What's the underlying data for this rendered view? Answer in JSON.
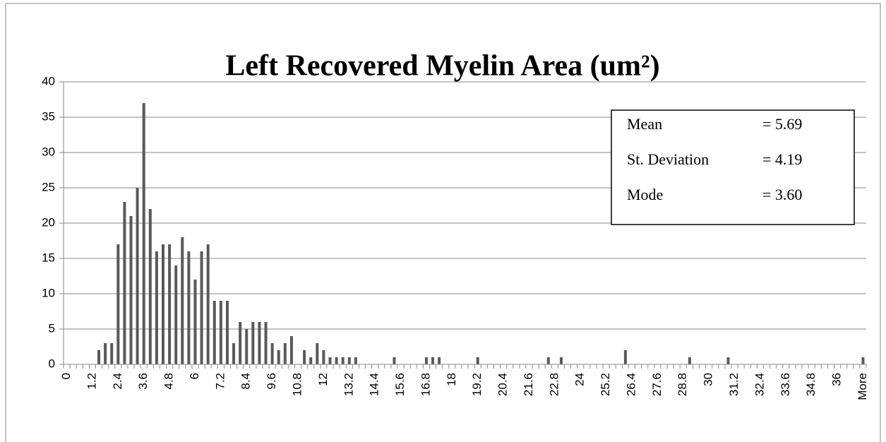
{
  "chart_data": {
    "type": "bar",
    "title": "Left Recovered Myelin Area (um²)",
    "categories": [
      "0",
      null,
      null,
      null,
      "1.2",
      null,
      null,
      null,
      "2.4",
      null,
      null,
      null,
      "3.6",
      null,
      null,
      null,
      "4.8",
      null,
      null,
      null,
      "6",
      null,
      null,
      null,
      "7.2",
      null,
      null,
      null,
      "8.4",
      null,
      null,
      null,
      "9.6",
      null,
      null,
      null,
      "10.8",
      null,
      null,
      null,
      "12",
      null,
      null,
      null,
      "13.2",
      null,
      null,
      null,
      "14.4",
      null,
      null,
      null,
      "15.6",
      null,
      null,
      null,
      "16.8",
      null,
      null,
      null,
      "18",
      null,
      null,
      null,
      "19.2",
      null,
      null,
      null,
      "20.4",
      null,
      null,
      null,
      "21.6",
      null,
      null,
      null,
      "22.8",
      null,
      null,
      null,
      "24",
      null,
      null,
      null,
      "25.2",
      null,
      null,
      null,
      "26.4",
      null,
      null,
      null,
      "27.6",
      null,
      null,
      null,
      "28.8",
      null,
      null,
      null,
      "30",
      null,
      null,
      null,
      "31.2",
      null,
      null,
      null,
      "32.4",
      null,
      null,
      null,
      "33.6",
      null,
      null,
      null,
      "34.8",
      null,
      null,
      null,
      "36",
      null,
      null,
      null,
      "More"
    ],
    "values": [
      0,
      0,
      0,
      0,
      0,
      2,
      3,
      3,
      17,
      23,
      21,
      25,
      37,
      22,
      16,
      17,
      17,
      14,
      18,
      16,
      12,
      16,
      17,
      9,
      9,
      9,
      3,
      6,
      5,
      6,
      6,
      6,
      3,
      2,
      3,
      4,
      0,
      2,
      1,
      3,
      2,
      1,
      1,
      1,
      1,
      1,
      0,
      0,
      0,
      0,
      0,
      1,
      0,
      0,
      0,
      0,
      1,
      1,
      1,
      0,
      0,
      0,
      0,
      0,
      1,
      0,
      0,
      0,
      0,
      0,
      0,
      0,
      0,
      0,
      0,
      1,
      0,
      1,
      0,
      0,
      0,
      0,
      0,
      0,
      0,
      0,
      0,
      2,
      0,
      0,
      0,
      0,
      0,
      0,
      0,
      0,
      0,
      1,
      0,
      0,
      0,
      0,
      0,
      1,
      0,
      0,
      0,
      0,
      0,
      0,
      0,
      0,
      0,
      0,
      0,
      0,
      0,
      0,
      0,
      0,
      0,
      0,
      0,
      0,
      1
    ],
    "color": "#595959",
    "ylim": [
      0,
      40
    ],
    "yticks": [
      0,
      5,
      10,
      15,
      20,
      25,
      30,
      35,
      40
    ],
    "grid": true,
    "stats": [
      {
        "label": "Mean",
        "value": "= 5.69"
      },
      {
        "label": "St. Deviation",
        "value": "= 4.19"
      },
      {
        "label": "Mode",
        "value": "= 3.60"
      }
    ]
  }
}
